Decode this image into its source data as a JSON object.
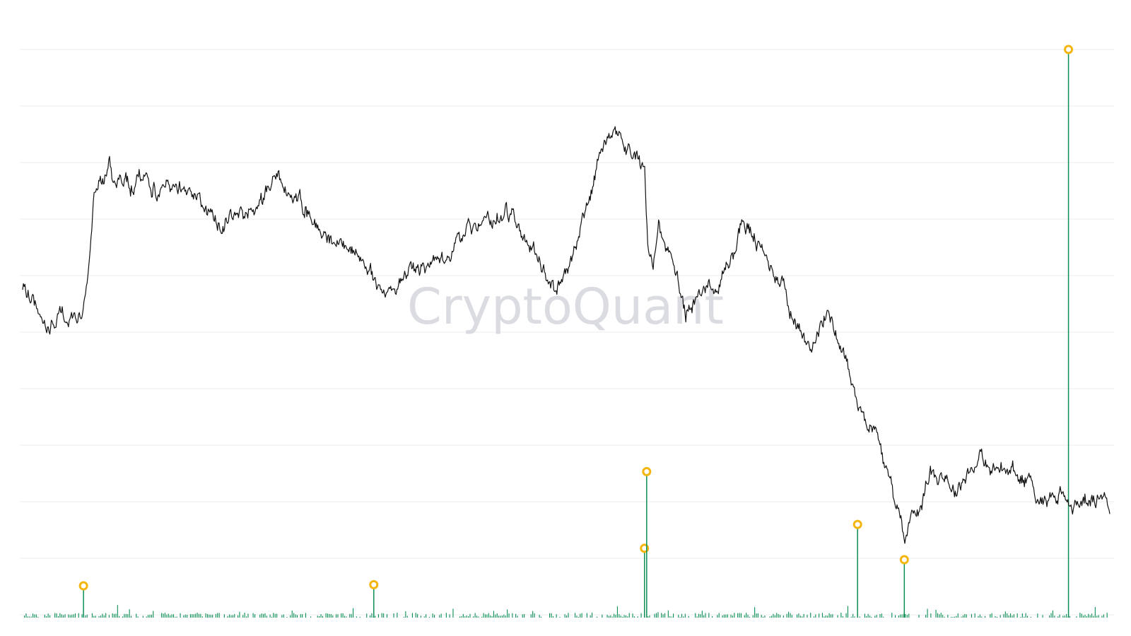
{
  "watermark": "CryptoQuant",
  "colors": {
    "price_line": "#111111",
    "volume_bars": "#0b8f55",
    "spike_stem": "#0b8f55",
    "spike_marker": "#f5b50f",
    "grid": "#eeeeee"
  },
  "chart_data": {
    "type": "line",
    "title": "",
    "xlabel": "",
    "ylabel": "",
    "grid": true,
    "legend": "none",
    "x_range": [
      0,
      1
    ],
    "series": [
      {
        "kind": "line",
        "values": [
          [
            0.0,
            0.42
          ],
          [
            0.01,
            0.382
          ],
          [
            0.018,
            0.34
          ],
          [
            0.025,
            0.31
          ],
          [
            0.032,
            0.35
          ],
          [
            0.045,
            0.33
          ],
          [
            0.055,
            0.36
          ],
          [
            0.06,
            0.42
          ],
          [
            0.062,
            0.48
          ],
          [
            0.065,
            0.61
          ],
          [
            0.068,
            0.66
          ],
          [
            0.075,
            0.67
          ],
          [
            0.08,
            0.74
          ],
          [
            0.083,
            0.65
          ],
          [
            0.09,
            0.69
          ],
          [
            0.1,
            0.67
          ],
          [
            0.115,
            0.69
          ],
          [
            0.125,
            0.64
          ],
          [
            0.135,
            0.66
          ],
          [
            0.15,
            0.67
          ],
          [
            0.17,
            0.6
          ],
          [
            0.185,
            0.57
          ],
          [
            0.2,
            0.6
          ],
          [
            0.215,
            0.61
          ],
          [
            0.225,
            0.66
          ],
          [
            0.23,
            0.7
          ],
          [
            0.238,
            0.68
          ],
          [
            0.245,
            0.64
          ],
          [
            0.255,
            0.63
          ],
          [
            0.265,
            0.59
          ],
          [
            0.275,
            0.56
          ],
          [
            0.285,
            0.54
          ],
          [
            0.295,
            0.52
          ],
          [
            0.305,
            0.5
          ],
          [
            0.315,
            0.47
          ],
          [
            0.325,
            0.43
          ],
          [
            0.335,
            0.4
          ],
          [
            0.345,
            0.42
          ],
          [
            0.355,
            0.46
          ],
          [
            0.365,
            0.46
          ],
          [
            0.375,
            0.48
          ],
          [
            0.39,
            0.47
          ],
          [
            0.4,
            0.53
          ],
          [
            0.415,
            0.57
          ],
          [
            0.43,
            0.58
          ],
          [
            0.445,
            0.6
          ],
          [
            0.455,
            0.57
          ],
          [
            0.465,
            0.52
          ],
          [
            0.475,
            0.48
          ],
          [
            0.485,
            0.42
          ],
          [
            0.495,
            0.43
          ],
          [
            0.505,
            0.48
          ],
          [
            0.512,
            0.54
          ],
          [
            0.52,
            0.61
          ],
          [
            0.53,
            0.72
          ],
          [
            0.538,
            0.77
          ],
          [
            0.545,
            0.8
          ],
          [
            0.555,
            0.76
          ],
          [
            0.565,
            0.74
          ],
          [
            0.572,
            0.7
          ],
          [
            0.575,
            0.52
          ],
          [
            0.58,
            0.46
          ],
          [
            0.585,
            0.58
          ],
          [
            0.59,
            0.5
          ],
          [
            0.598,
            0.48
          ],
          [
            0.605,
            0.42
          ],
          [
            0.61,
            0.36
          ],
          [
            0.62,
            0.38
          ],
          [
            0.63,
            0.43
          ],
          [
            0.64,
            0.4
          ],
          [
            0.648,
            0.48
          ],
          [
            0.655,
            0.5
          ],
          [
            0.662,
            0.58
          ],
          [
            0.67,
            0.55
          ],
          [
            0.68,
            0.5
          ],
          [
            0.69,
            0.46
          ],
          [
            0.7,
            0.43
          ],
          [
            0.705,
            0.36
          ],
          [
            0.712,
            0.33
          ],
          [
            0.72,
            0.26
          ],
          [
            0.728,
            0.3
          ],
          [
            0.735,
            0.32
          ],
          [
            0.742,
            0.36
          ],
          [
            0.75,
            0.29
          ],
          [
            0.758,
            0.24
          ],
          [
            0.762,
            0.18
          ],
          [
            0.77,
            0.12
          ],
          [
            0.78,
            0.08
          ],
          [
            0.79,
            0.02
          ],
          [
            0.795,
            -0.05
          ],
          [
            0.8,
            -0.08
          ],
          [
            0.808,
            -0.16
          ],
          [
            0.812,
            -0.2
          ],
          [
            0.818,
            -0.14
          ],
          [
            0.825,
            -0.12
          ],
          [
            0.83,
            -0.08
          ],
          [
            0.835,
            -0.04
          ],
          [
            0.842,
            -0.04
          ],
          [
            0.85,
            -0.05
          ],
          [
            0.858,
            -0.09
          ],
          [
            0.865,
            -0.05
          ],
          [
            0.872,
            -0.03
          ],
          [
            0.88,
            0.0
          ],
          [
            0.89,
            -0.04
          ],
          [
            0.9,
            -0.03
          ],
          [
            0.91,
            -0.04
          ],
          [
            0.92,
            -0.06
          ],
          [
            0.928,
            -0.05
          ],
          [
            0.935,
            -0.11
          ],
          [
            0.945,
            -0.1
          ],
          [
            0.955,
            -0.08
          ],
          [
            0.962,
            -0.13
          ],
          [
            0.97,
            -0.12
          ],
          [
            0.98,
            -0.1
          ],
          [
            0.988,
            -0.12
          ],
          [
            0.995,
            -0.08
          ],
          [
            1.0,
            -0.11
          ]
        ]
      },
      {
        "kind": "spikes",
        "values": [
          [
            0.056,
            0.056
          ],
          [
            0.323,
            0.058
          ],
          [
            0.572,
            0.122
          ],
          [
            0.574,
            0.257
          ],
          [
            0.768,
            0.164
          ],
          [
            0.811,
            0.102
          ],
          [
            0.962,
            1.0
          ]
        ]
      }
    ],
    "price_ylim": [
      -0.4,
      1.0
    ],
    "volume_ylim": [
      0,
      1
    ]
  }
}
